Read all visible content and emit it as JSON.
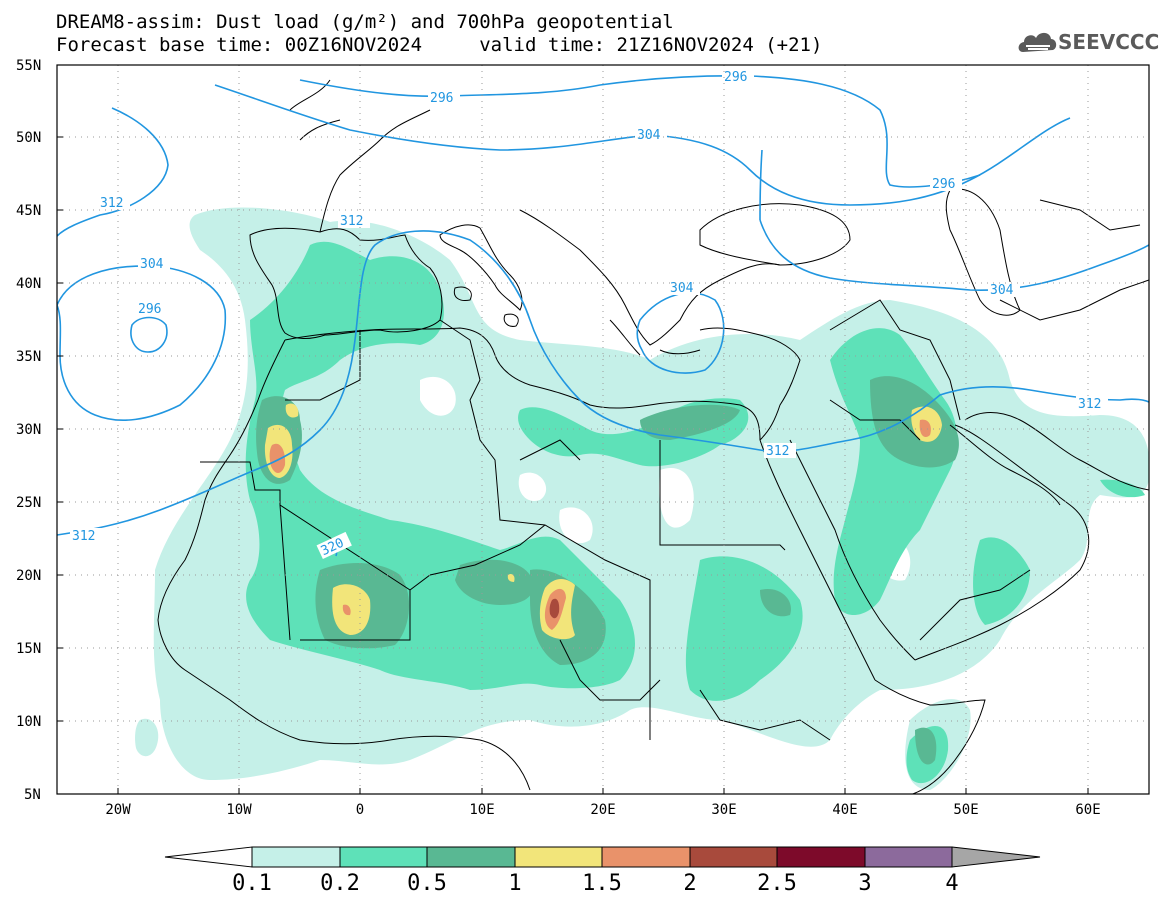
{
  "title": {
    "line1": "DREAM8-assim: Dust load (g/m²) and 700hPa geopotential",
    "line2": "Forecast base time: 00Z16NOV2024     valid time: 21Z16NOV2024 (+21)"
  },
  "logo": {
    "text": "SEEVCCC",
    "icon": "cloud-logo-icon"
  },
  "axes": {
    "lat_labels": [
      "55N",
      "50N",
      "45N",
      "40N",
      "35N",
      "30N",
      "25N",
      "20N",
      "15N",
      "10N",
      "5N"
    ],
    "lon_labels": [
      "20W",
      "10W",
      "0",
      "10E",
      "20E",
      "30E",
      "40E",
      "50E",
      "60E"
    ]
  },
  "colorbar": {
    "labels": [
      "0.1",
      "0.2",
      "0.5",
      "1",
      "1.5",
      "2",
      "2.5",
      "3",
      "4"
    ],
    "colors": [
      "#c5f0e8",
      "#5ee1b8",
      "#59b893",
      "#f2e57a",
      "#e9926a",
      "#a84a3c",
      "#7d0a2a",
      "#8c6a9c",
      "#a6a6a6"
    ]
  },
  "contour_labels": [
    "296",
    "296",
    "304",
    "296",
    "304",
    "312",
    "312",
    "304",
    "296",
    "304",
    "312",
    "312",
    "312",
    "320"
  ],
  "colors": {
    "contour": "#2196e0",
    "coast": "#000000"
  }
}
